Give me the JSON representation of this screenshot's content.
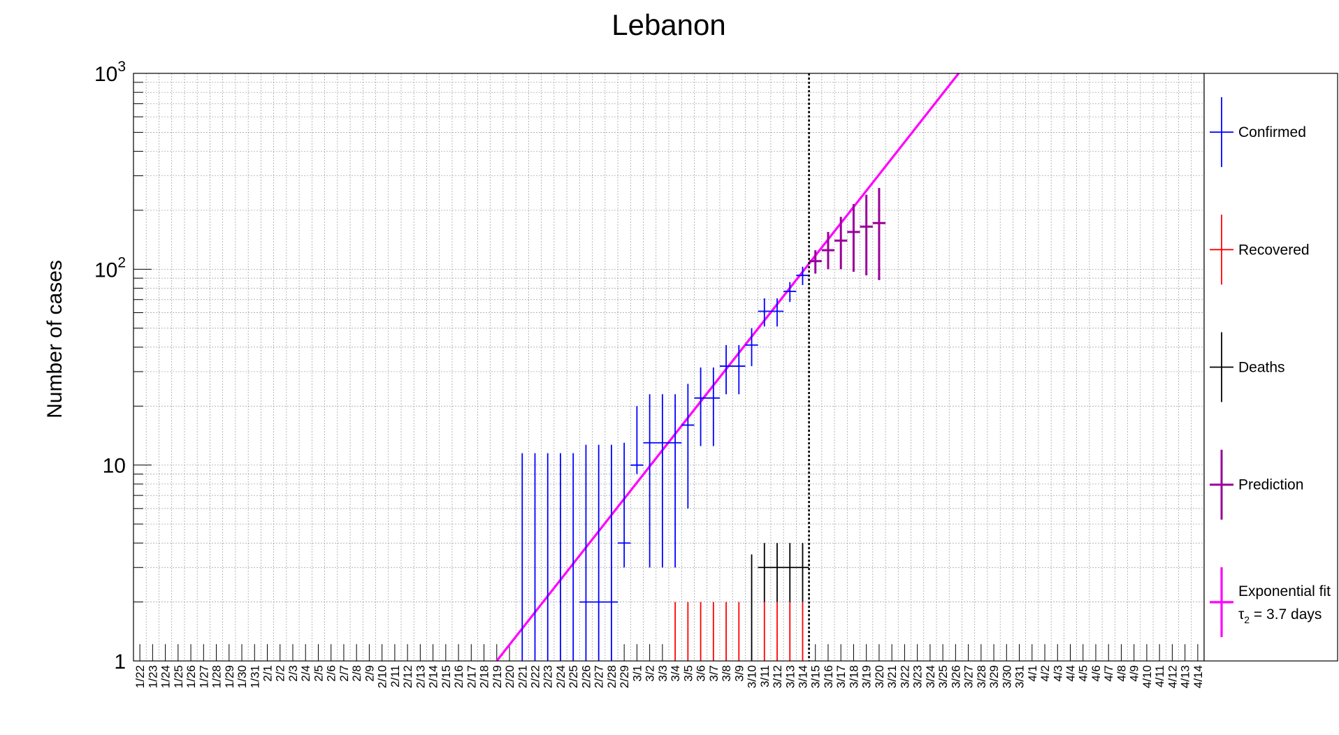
{
  "chart_data": {
    "type": "scatter",
    "title": "Lebanon",
    "ylabel": "Number of cases",
    "xlabel": "",
    "y_scale": "log",
    "ylim": [
      1,
      1000
    ],
    "y_tick_labels": [
      {
        "value": 1,
        "base": "1",
        "exp": ""
      },
      {
        "value": 10,
        "base": "10",
        "exp": ""
      },
      {
        "value": 100,
        "base": "10",
        "exp": "2"
      },
      {
        "value": 1000,
        "base": "10",
        "exp": "3"
      }
    ],
    "grid": true,
    "legend_position": "right",
    "dates": [
      "1/22",
      "1/23",
      "1/24",
      "1/25",
      "1/26",
      "1/27",
      "1/28",
      "1/29",
      "1/30",
      "1/31",
      "2/1",
      "2/2",
      "2/3",
      "2/4",
      "2/5",
      "2/6",
      "2/7",
      "2/8",
      "2/9",
      "2/10",
      "2/11",
      "2/12",
      "2/13",
      "2/14",
      "2/15",
      "2/16",
      "2/17",
      "2/18",
      "2/19",
      "2/20",
      "2/21",
      "2/22",
      "2/23",
      "2/24",
      "2/25",
      "2/26",
      "2/27",
      "2/28",
      "2/29",
      "3/1",
      "3/2",
      "3/3",
      "3/4",
      "3/5",
      "3/6",
      "3/7",
      "3/8",
      "3/9",
      "3/10",
      "3/11",
      "3/12",
      "3/13",
      "3/14",
      "3/15",
      "3/16",
      "3/17",
      "3/18",
      "3/19",
      "3/20",
      "3/21",
      "3/22",
      "3/23",
      "3/24",
      "3/25",
      "3/26",
      "3/27",
      "3/28",
      "3/29",
      "3/30",
      "3/31",
      "4/1",
      "4/2",
      "4/3",
      "4/4",
      "4/5",
      "4/6",
      "4/7",
      "4/8",
      "4/9",
      "4/10",
      "4/11",
      "4/12",
      "4/13",
      "4/14"
    ],
    "vertical_marker_date": "3/14",
    "series": [
      {
        "name": "Confirmed",
        "color": "#0000ff",
        "points": [
          {
            "date": "2/21",
            "y": 1,
            "err_low": 0,
            "err_high": 11.5
          },
          {
            "date": "2/22",
            "y": 1,
            "err_low": 0,
            "err_high": 11.5
          },
          {
            "date": "2/23",
            "y": 1,
            "err_low": 0,
            "err_high": 11.5
          },
          {
            "date": "2/24",
            "y": 1,
            "err_low": 0,
            "err_high": 11.5
          },
          {
            "date": "2/25",
            "y": 1,
            "err_low": 0,
            "err_high": 11.5
          },
          {
            "date": "2/26",
            "y": 2,
            "err_low": 1,
            "err_high": 12.7
          },
          {
            "date": "2/27",
            "y": 2,
            "err_low": 1,
            "err_high": 12.7
          },
          {
            "date": "2/28",
            "y": 2,
            "err_low": 1,
            "err_high": 12.7
          },
          {
            "date": "2/29",
            "y": 4,
            "err_low": 3,
            "err_high": 13
          },
          {
            "date": "3/1",
            "y": 10,
            "err_low": 9,
            "err_high": 20
          },
          {
            "date": "3/2",
            "y": 13,
            "err_low": 3,
            "err_high": 23
          },
          {
            "date": "3/3",
            "y": 13,
            "err_low": 3,
            "err_high": 23
          },
          {
            "date": "3/4",
            "y": 13,
            "err_low": 3,
            "err_high": 23
          },
          {
            "date": "3/5",
            "y": 16,
            "err_low": 6,
            "err_high": 26
          },
          {
            "date": "3/6",
            "y": 22,
            "err_low": 12.5,
            "err_high": 31.5
          },
          {
            "date": "3/7",
            "y": 22,
            "err_low": 12.5,
            "err_high": 31.5
          },
          {
            "date": "3/8",
            "y": 32,
            "err_low": 23,
            "err_high": 41
          },
          {
            "date": "3/9",
            "y": 32,
            "err_low": 23,
            "err_high": 41
          },
          {
            "date": "3/10",
            "y": 41,
            "err_low": 32,
            "err_high": 50
          },
          {
            "date": "3/11",
            "y": 61,
            "err_low": 51,
            "err_high": 71
          },
          {
            "date": "3/12",
            "y": 61,
            "err_low": 51,
            "err_high": 71
          },
          {
            "date": "3/13",
            "y": 77,
            "err_low": 68,
            "err_high": 86
          },
          {
            "date": "3/14",
            "y": 93,
            "err_low": 83,
            "err_high": 103
          }
        ]
      },
      {
        "name": "Recovered",
        "color": "#ff0000",
        "points": [
          {
            "date": "3/4",
            "y": 1,
            "err_low": 0,
            "err_high": 2
          },
          {
            "date": "3/5",
            "y": 1,
            "err_low": 0,
            "err_high": 2
          },
          {
            "date": "3/6",
            "y": 1,
            "err_low": 0,
            "err_high": 2
          },
          {
            "date": "3/7",
            "y": 1,
            "err_low": 0,
            "err_high": 2
          },
          {
            "date": "3/8",
            "y": 1,
            "err_low": 0,
            "err_high": 2
          },
          {
            "date": "3/9",
            "y": 1,
            "err_low": 0,
            "err_high": 2
          },
          {
            "date": "3/11",
            "y": 1,
            "err_low": 0,
            "err_high": 2
          },
          {
            "date": "3/12",
            "y": 1,
            "err_low": 0,
            "err_high": 2
          },
          {
            "date": "3/13",
            "y": 1,
            "err_low": 0,
            "err_high": 2
          },
          {
            "date": "3/14",
            "y": 1,
            "err_low": 0,
            "err_high": 2
          }
        ]
      },
      {
        "name": "Deaths",
        "color": "#000000",
        "points": [
          {
            "date": "3/10",
            "y": 1,
            "err_low": 0,
            "err_high": 3.5
          },
          {
            "date": "3/11",
            "y": 3,
            "err_low": 2,
            "err_high": 4
          },
          {
            "date": "3/12",
            "y": 3,
            "err_low": 2,
            "err_high": 4
          },
          {
            "date": "3/13",
            "y": 3,
            "err_low": 2,
            "err_high": 4
          },
          {
            "date": "3/14",
            "y": 3,
            "err_low": 2,
            "err_high": 4
          }
        ]
      },
      {
        "name": "Prediction",
        "color": "#990099",
        "points": [
          {
            "date": "3/15",
            "y": 110,
            "err_low": 95,
            "err_high": 125
          },
          {
            "date": "3/16",
            "y": 125,
            "err_low": 100,
            "err_high": 155
          },
          {
            "date": "3/17",
            "y": 140,
            "err_low": 100,
            "err_high": 185
          },
          {
            "date": "3/18",
            "y": 155,
            "err_low": 97,
            "err_high": 215
          },
          {
            "date": "3/19",
            "y": 165,
            "err_low": 93,
            "err_high": 240
          },
          {
            "date": "3/20",
            "y": 172,
            "err_low": 88,
            "err_high": 260
          }
        ]
      }
    ],
    "fit": {
      "name": "Exponential fit",
      "note_symbol": "τ",
      "note_sub": "2",
      "note_rest": " = 3.7 days",
      "color": "#ff00ff",
      "from": {
        "date": "2/19",
        "y": 1
      },
      "to": {
        "date": "3/14",
        "y": 97
      }
    }
  }
}
